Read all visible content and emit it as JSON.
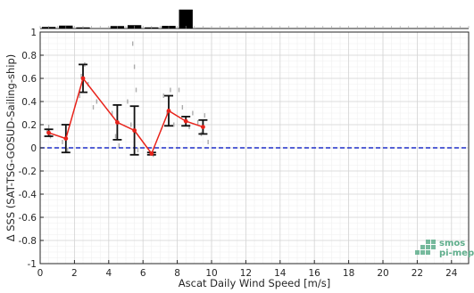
{
  "chart_data": {
    "type": "line",
    "xlabel": "Ascat Daily Wind Speed [m/s]",
    "ylabel": "Δ SSS (SAT-TSG-GOSUD-Sailing-ship)",
    "xlim": [
      0,
      25
    ],
    "ylim": [
      -1,
      1
    ],
    "xticks": [
      0,
      2,
      4,
      6,
      8,
      10,
      12,
      14,
      16,
      18,
      20,
      22,
      24
    ],
    "yticks": [
      -1,
      -0.8,
      -0.6,
      -0.4,
      -0.2,
      0,
      0.2,
      0.4,
      0.6,
      0.8,
      1
    ],
    "grid": true,
    "colors": {
      "mean_line": "#e8231b",
      "zero_line": "#1f2ec9",
      "errorbar": "#111111",
      "scatter": "#8a8a8a",
      "histogram": "#000000",
      "logo": "#5fae8c"
    },
    "series": [
      {
        "x": [
          0.5,
          1.5,
          2.5,
          4.5,
          5.5,
          6.5,
          7.5,
          8.5,
          9.5
        ],
        "y": [
          0.13,
          0.08,
          0.6,
          0.22,
          0.15,
          -0.05,
          0.32,
          0.23,
          0.18
        ],
        "error": [
          0.03,
          0.12,
          0.12,
          0.15,
          0.21,
          0.01,
          0.13,
          0.04,
          0.06
        ]
      }
    ],
    "reference_line": {
      "y": 0,
      "style": "dashed"
    },
    "histogram": {
      "bins": [
        0.5,
        1.5,
        2.5,
        4.5,
        5.5,
        6.5,
        7.5,
        8.5,
        9.5
      ],
      "relative_counts": [
        0.07,
        0.13,
        0.05,
        0.11,
        0.15,
        0.05,
        0.12,
        0.85,
        0.02
      ]
    },
    "scatter_points": [
      {
        "x": 0.4,
        "y": 0.15
      },
      {
        "x": 0.5,
        "y": 0.18
      },
      {
        "x": 0.6,
        "y": 0.1
      },
      {
        "x": 1.3,
        "y": 0.05
      },
      {
        "x": 1.5,
        "y": 0.18
      },
      {
        "x": 1.6,
        "y": -0.02
      },
      {
        "x": 2.3,
        "y": 0.45
      },
      {
        "x": 2.4,
        "y": 0.62
      },
      {
        "x": 2.6,
        "y": 0.72
      },
      {
        "x": 2.8,
        "y": 0.55
      },
      {
        "x": 3.1,
        "y": 0.35
      },
      {
        "x": 3.3,
        "y": 0.4
      },
      {
        "x": 4.2,
        "y": 0.3
      },
      {
        "x": 4.4,
        "y": 0.1
      },
      {
        "x": 4.6,
        "y": 0.02
      },
      {
        "x": 5.1,
        "y": 0.4
      },
      {
        "x": 5.3,
        "y": 0.2
      },
      {
        "x": 5.4,
        "y": 0.9
      },
      {
        "x": 5.5,
        "y": 0.7
      },
      {
        "x": 5.6,
        "y": 0.5
      },
      {
        "x": 5.7,
        "y": -0.02
      },
      {
        "x": 6.4,
        "y": -0.04
      },
      {
        "x": 6.6,
        "y": -0.06
      },
      {
        "x": 7.2,
        "y": 0.45
      },
      {
        "x": 7.4,
        "y": 0.3
      },
      {
        "x": 7.6,
        "y": 0.5
      },
      {
        "x": 7.8,
        "y": 0.2
      },
      {
        "x": 8.1,
        "y": 0.5
      },
      {
        "x": 8.3,
        "y": 0.35
      },
      {
        "x": 8.5,
        "y": 0.25
      },
      {
        "x": 8.7,
        "y": 0.18
      },
      {
        "x": 8.9,
        "y": 0.3
      },
      {
        "x": 9.2,
        "y": 0.22
      },
      {
        "x": 9.4,
        "y": 0.12
      },
      {
        "x": 9.6,
        "y": 0.28
      },
      {
        "x": 9.8,
        "y": 0.05
      }
    ]
  },
  "logo": {
    "line1": "smos",
    "line2": "pi-mep"
  }
}
